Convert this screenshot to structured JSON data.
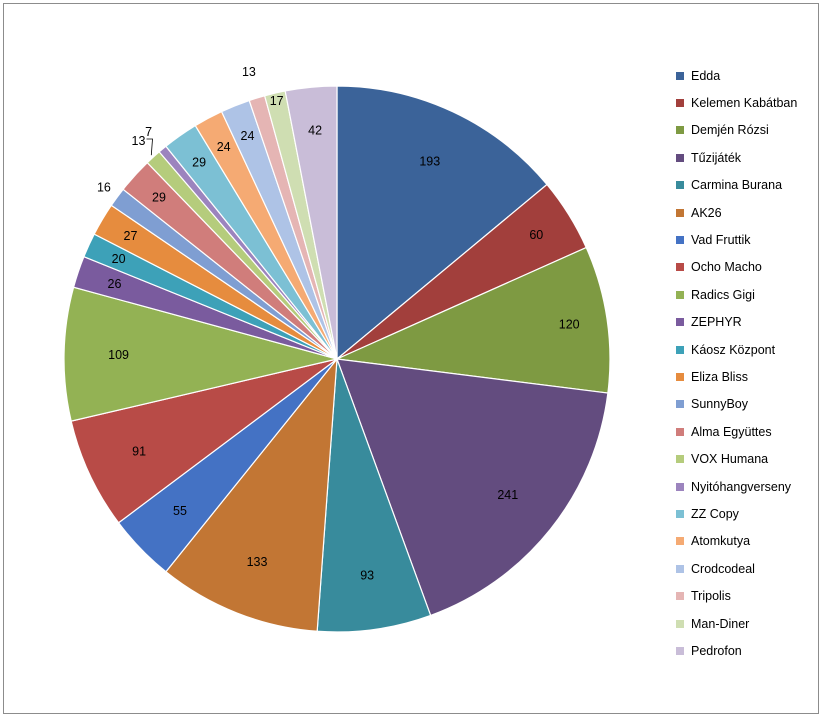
{
  "chart_data": {
    "type": "pie",
    "legend_position": "right",
    "slices": [
      {
        "label": "Edda",
        "value": 193,
        "color": "#3b6399"
      },
      {
        "label": "Kelemen Kabátban",
        "value": 60,
        "color": "#a23f3c"
      },
      {
        "label": "Demjén Rózsi",
        "value": 120,
        "color": "#7e9a42"
      },
      {
        "label": "Tűzijáték",
        "value": 241,
        "color": "#634c7f"
      },
      {
        "label": "Carmina Burana",
        "value": 93,
        "color": "#388b9c"
      },
      {
        "label": "AK26",
        "value": 133,
        "color": "#c27634"
      },
      {
        "label": "Vad Fruttik",
        "value": 55,
        "color": "#4472c4"
      },
      {
        "label": "Ocho Macho",
        "value": 91,
        "color": "#b84b47"
      },
      {
        "label": "Radics Gigi",
        "value": 109,
        "color": "#93b254"
      },
      {
        "label": "ZEPHYR",
        "value": 26,
        "color": "#7a5b9e"
      },
      {
        "label": "Káosz Központ",
        "value": 20,
        "color": "#3da1b8"
      },
      {
        "label": "Eliza Bliss",
        "value": 27,
        "color": "#e68c3e"
      },
      {
        "label": "SunnyBoy",
        "value": 16,
        "color": "#7f9ed2"
      },
      {
        "label": "Alma Együttes",
        "value": 29,
        "color": "#d07d7b"
      },
      {
        "label": "VOX Humana",
        "value": 13,
        "color": "#b5cc7c"
      },
      {
        "label": "Nyitóhangverseny",
        "value": 7,
        "color": "#9c84be"
      },
      {
        "label": "ZZ Copy",
        "value": 29,
        "color": "#7cc0d4"
      },
      {
        "label": "Atomkutya",
        "value": 24,
        "color": "#f5aa73"
      },
      {
        "label": "Crodcodeal",
        "value": 24,
        "color": "#aec3e6"
      },
      {
        "label": "Tripolis",
        "value": 13,
        "color": "#e5b5b4"
      },
      {
        "label": "Man-Diner",
        "value": 17,
        "color": "#cfdeb2"
      },
      {
        "label": "Pedrofon",
        "value": 42,
        "color": "#c9bdd8"
      }
    ]
  }
}
